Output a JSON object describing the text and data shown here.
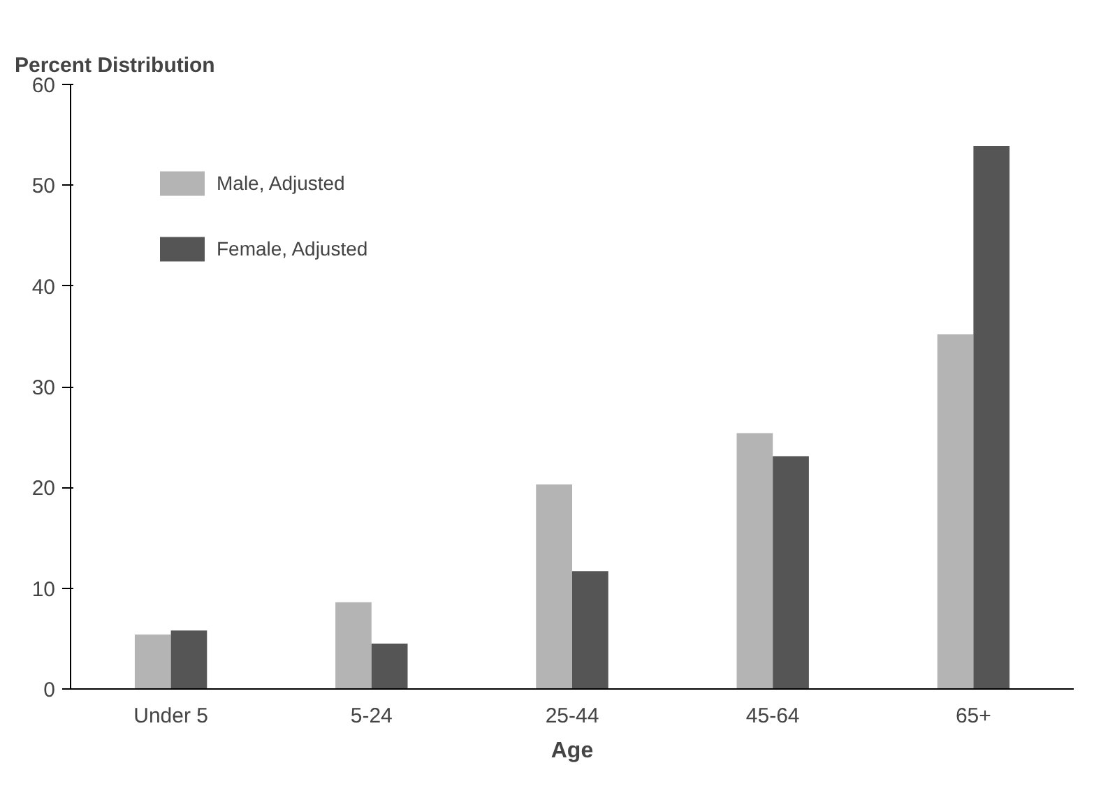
{
  "chart_data": {
    "type": "bar",
    "title": "Percent Distribution",
    "xlabel": "Age",
    "categories": [
      "Under 5",
      "5-24",
      "25-44",
      "45-64",
      "65+"
    ],
    "series": [
      {
        "name": "Male, Adjusted",
        "color": "#b4b4b4",
        "values": [
          5.4,
          8.6,
          20.3,
          25.4,
          35.2
        ]
      },
      {
        "name": "Female, Adjusted",
        "color": "#555555",
        "values": [
          5.8,
          4.5,
          11.7,
          23.1,
          53.9
        ]
      }
    ],
    "ylim": [
      0,
      60
    ],
    "yticks": [
      0,
      10,
      20,
      30,
      40,
      50,
      60
    ],
    "grid": false,
    "legend": "top left"
  }
}
